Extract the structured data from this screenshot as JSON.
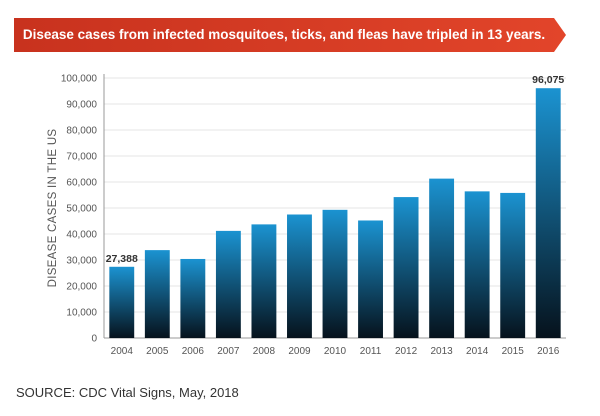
{
  "banner": {
    "text": "Disease cases from infected mosquitoes, ticks, and fleas have tripled in 13 years.",
    "color": "#d63a22"
  },
  "source": "SOURCE: CDC Vital Signs, May, 2018",
  "chart_data": {
    "type": "bar",
    "title": "",
    "xlabel": "",
    "ylabel": "DISEASE CASES IN THE US",
    "categories": [
      "2004",
      "2005",
      "2006",
      "2007",
      "2008",
      "2009",
      "2010",
      "2011",
      "2012",
      "2013",
      "2014",
      "2015",
      "2016"
    ],
    "values": [
      27388,
      33800,
      30400,
      41200,
      43700,
      47500,
      49300,
      45200,
      54200,
      61300,
      56400,
      55800,
      96075
    ],
    "data_labels": [
      {
        "category": "2004",
        "text": "27,388"
      },
      {
        "category": "2016",
        "text": "96,075"
      }
    ],
    "ylim": [
      0,
      100000
    ],
    "yticks": [
      0,
      10000,
      20000,
      30000,
      40000,
      50000,
      60000,
      70000,
      80000,
      90000,
      100000
    ],
    "ytick_labels": [
      "0",
      "10,000",
      "20,000",
      "30,000",
      "40,000",
      "50,000",
      "60,000",
      "70,000",
      "80,000",
      "90,000",
      "100,000"
    ],
    "grid": true,
    "bar_gradient": {
      "top": "#1b93d1",
      "bottom": "#06121c"
    },
    "grid_color": "#e4e4e4",
    "axis_color": "#999999"
  }
}
